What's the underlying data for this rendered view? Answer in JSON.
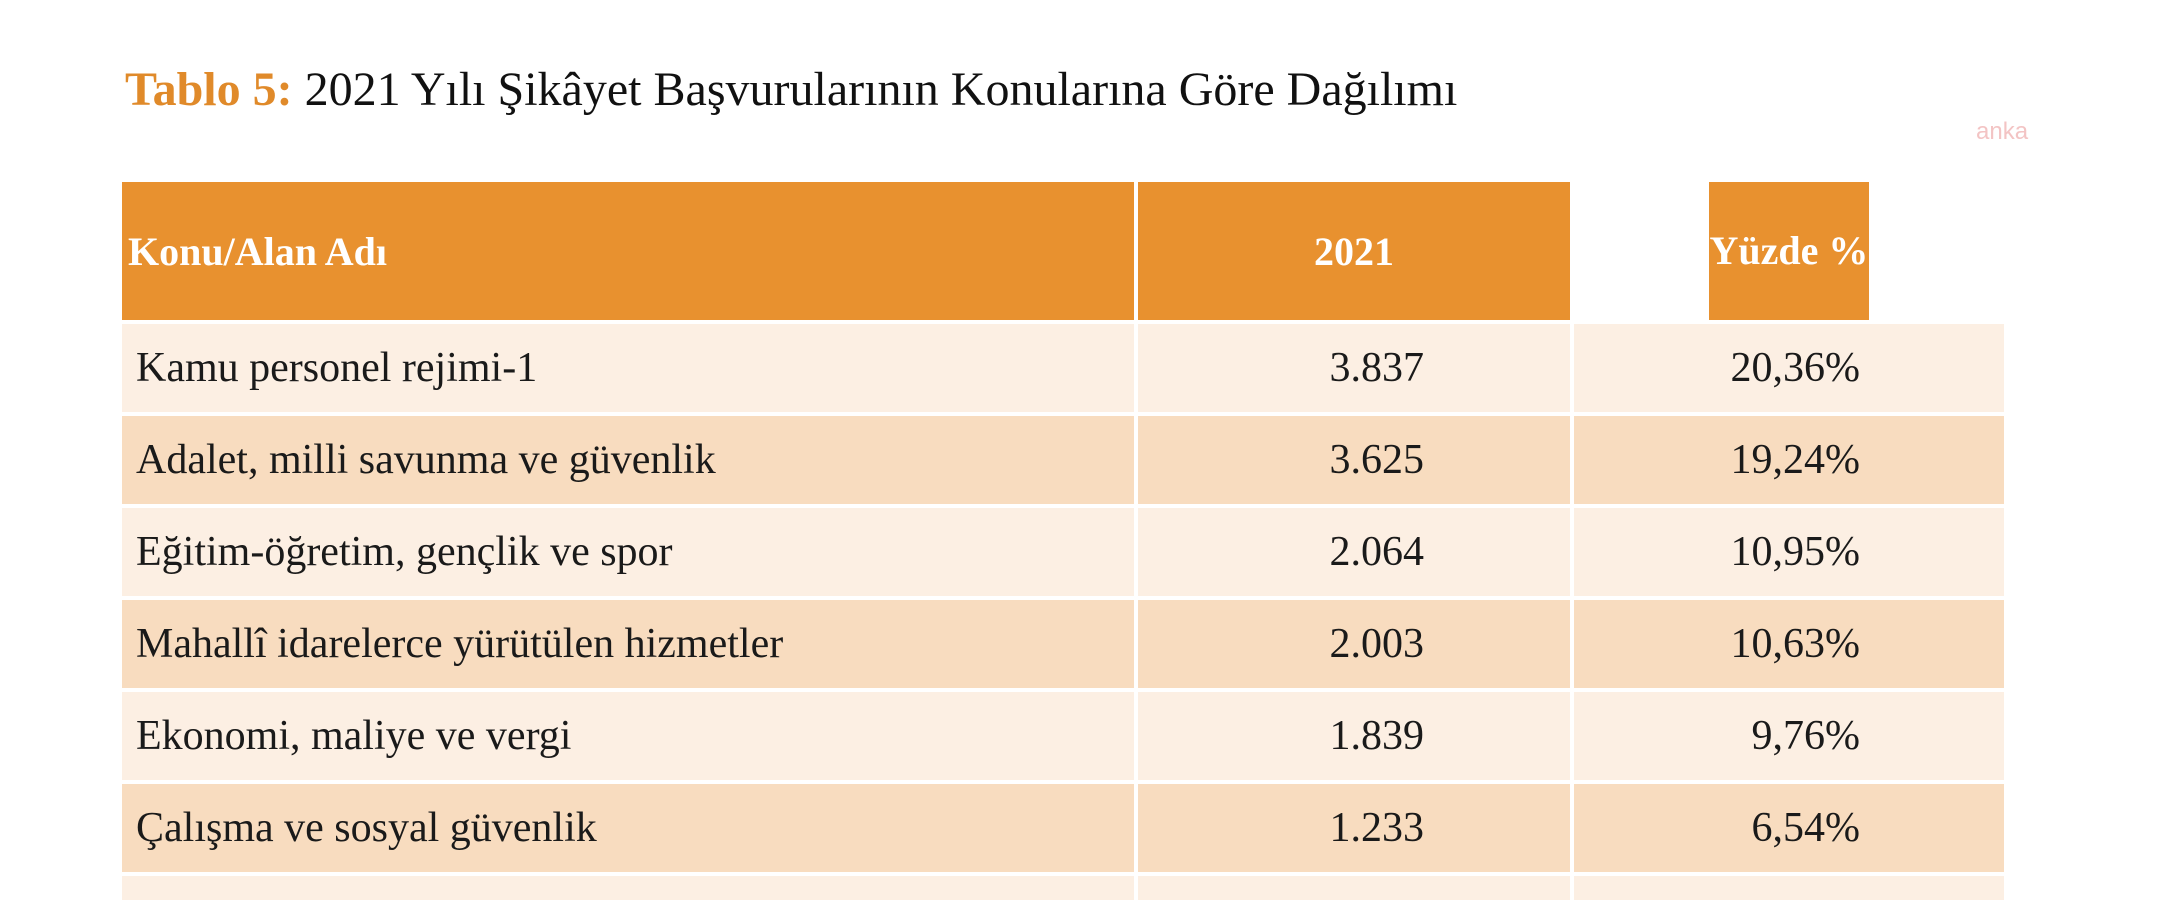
{
  "header": {
    "label": "Tablo 5:",
    "title": "2021 Yılı Şikâyet Başvurularının Konularına Göre Dağılımı",
    "watermark": "anka"
  },
  "table": {
    "columns": [
      "Konu/Alan Adı",
      "2021",
      "Yüzde %"
    ],
    "rows": [
      [
        "Kamu personel rejimi-1",
        "3.837",
        "20,36%"
      ],
      [
        "Adalet, milli savunma ve güvenlik",
        "3.625",
        "19,24%"
      ],
      [
        "Eğitim-öğretim, gençlik ve spor",
        "2.064",
        "10,95%"
      ],
      [
        "Mahallî idarelerce yürütülen hizmetler",
        "2.003",
        "10,63%"
      ],
      [
        "Ekonomi, maliye ve vergi",
        "1.839",
        "9,76%"
      ],
      [
        "Çalışma ve sosyal güvenlik",
        "1.233",
        "6,54%"
      ]
    ]
  }
}
